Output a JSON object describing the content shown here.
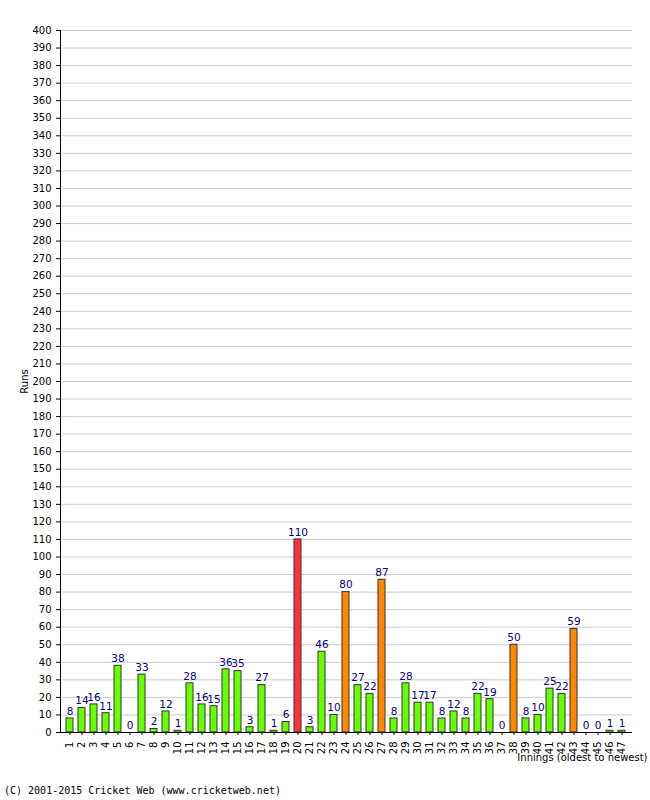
{
  "chart_data": {
    "type": "bar",
    "categories": [
      "1",
      "2",
      "3",
      "4",
      "5",
      "6",
      "7",
      "8",
      "9",
      "10",
      "11",
      "12",
      "13",
      "14",
      "15",
      "16",
      "17",
      "18",
      "19",
      "20",
      "21",
      "22",
      "23",
      "24",
      "25",
      "26",
      "27",
      "28",
      "29",
      "30",
      "31",
      "32",
      "33",
      "34",
      "35",
      "36",
      "37",
      "38",
      "39",
      "40",
      "41",
      "42",
      "43",
      "44",
      "45",
      "46",
      "47"
    ],
    "values": [
      8,
      14,
      16,
      11,
      38,
      0,
      33,
      2,
      12,
      1,
      28,
      16,
      15,
      36,
      35,
      3,
      27,
      1,
      6,
      110,
      3,
      46,
      10,
      80,
      27,
      22,
      87,
      8,
      28,
      17,
      17,
      8,
      12,
      8,
      22,
      19,
      0,
      50,
      8,
      10,
      25,
      22,
      59,
      0,
      0,
      1,
      1
    ],
    "colors": [
      "#66ff00",
      "#66ff00",
      "#66ff00",
      "#66ff00",
      "#66ff00",
      "#66ff00",
      "#66ff00",
      "#66ff00",
      "#66ff00",
      "#66ff00",
      "#66ff00",
      "#66ff00",
      "#66ff00",
      "#66ff00",
      "#66ff00",
      "#66ff00",
      "#66ff00",
      "#66ff00",
      "#66ff00",
      "#ff3333",
      "#66ff00",
      "#66ff00",
      "#66ff00",
      "#ff8800",
      "#66ff00",
      "#66ff00",
      "#ff8800",
      "#66ff00",
      "#66ff00",
      "#66ff00",
      "#66ff00",
      "#66ff00",
      "#66ff00",
      "#66ff00",
      "#66ff00",
      "#66ff00",
      "#66ff00",
      "#ff8800",
      "#66ff00",
      "#66ff00",
      "#66ff00",
      "#66ff00",
      "#ff8800",
      "#66ff00",
      "#66ff00",
      "#66ff00",
      "#66ff00"
    ],
    "x_label": "Innings (oldest to newest)",
    "y_label": "Runs",
    "caption": "(C) 2001-2015 Cricket Web (www.cricketweb.net)",
    "ylim": [
      0,
      400
    ],
    "yticks": [
      0,
      10,
      20,
      30,
      40,
      50,
      60,
      70,
      80,
      90,
      100,
      110,
      120,
      130,
      140,
      150,
      160,
      170,
      180,
      190,
      200,
      210,
      220,
      230,
      240,
      250,
      260,
      270,
      280,
      290,
      300,
      310,
      320,
      330,
      340,
      350,
      360,
      370,
      380,
      390,
      400
    ],
    "grid": true,
    "data_labels": true
  }
}
